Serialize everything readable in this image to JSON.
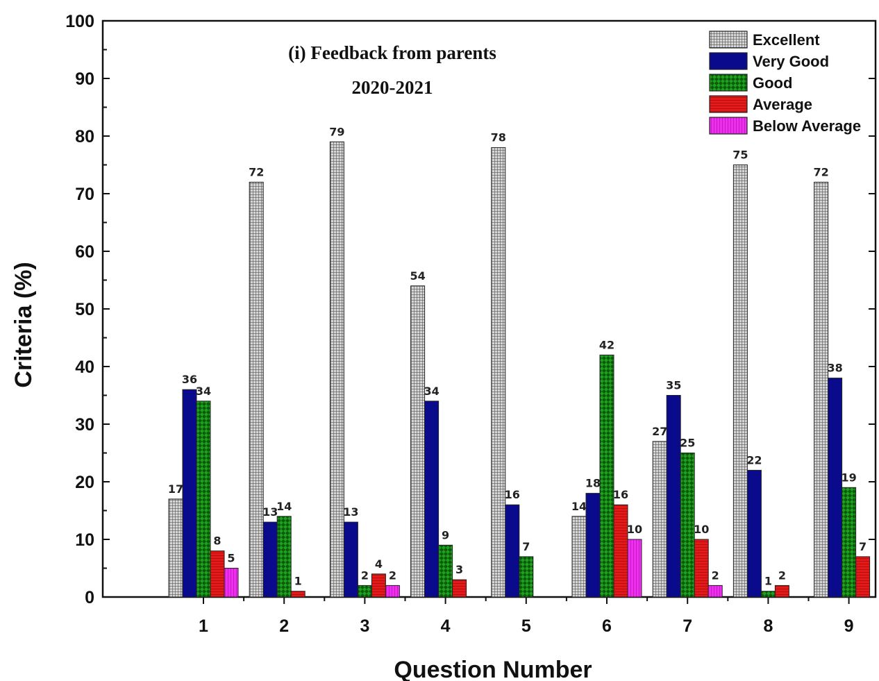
{
  "chart_data": {
    "type": "bar",
    "title": "(i) Feedback from parents",
    "subtitle": "2020-2021",
    "xlabel": "Question Number",
    "ylabel": "Criteria (%)",
    "ylim": [
      0,
      100
    ],
    "yticks": [
      0,
      10,
      20,
      30,
      40,
      50,
      60,
      70,
      80,
      90,
      100
    ],
    "categories": [
      "1",
      "2",
      "3",
      "4",
      "5",
      "6",
      "7",
      "8",
      "9"
    ],
    "legend_position": "top-right",
    "series": [
      {
        "name": "Excellent",
        "pattern": "grid",
        "color": "#8a8a8a",
        "values": [
          17,
          72,
          79,
          54,
          78,
          14,
          27,
          75,
          72
        ],
        "labels": [
          "17",
          "72",
          "79",
          "54",
          "78",
          "14",
          "27",
          "75",
          "72"
        ]
      },
      {
        "name": "Very Good",
        "pattern": "solid",
        "color": "#0a0a8c",
        "values": [
          36,
          13,
          13,
          34,
          16,
          18,
          35,
          22,
          38
        ],
        "labels": [
          "36",
          "13",
          "13",
          "34",
          "16",
          "18",
          "35",
          "22",
          "38"
        ]
      },
      {
        "name": "Good",
        "pattern": "checker",
        "color": "#0a7a0a",
        "values": [
          34,
          14,
          2,
          9,
          7,
          42,
          25,
          1,
          19
        ],
        "labels": [
          "34",
          "14",
          "2",
          "9",
          "7",
          "42",
          "25",
          "1",
          "19"
        ]
      },
      {
        "name": "Average",
        "pattern": "hlines",
        "color": "#e01010",
        "values": [
          8,
          1,
          4,
          3,
          0,
          16,
          10,
          2,
          7
        ],
        "labels": [
          "8",
          "1",
          "4",
          "3",
          "",
          "16",
          "10",
          "2",
          "7"
        ]
      },
      {
        "name": "Below Average",
        "pattern": "vlines",
        "color": "#e020e0",
        "values": [
          5,
          0,
          2,
          0,
          0,
          10,
          2,
          0,
          0
        ],
        "labels": [
          "5",
          "",
          "2",
          "",
          "",
          "10",
          "2",
          "",
          ""
        ]
      }
    ]
  }
}
